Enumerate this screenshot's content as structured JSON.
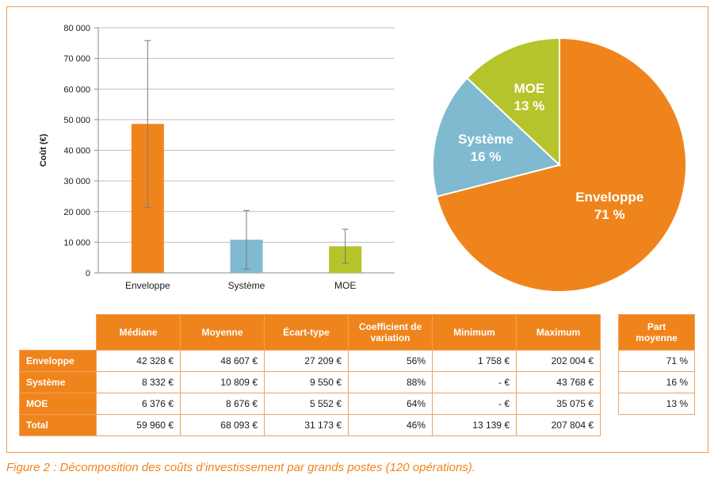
{
  "colors": {
    "orange": "#f0841c",
    "blue": "#7fbad0",
    "green": "#b5c42b",
    "grid": "#bfbfbf",
    "border": "#f29a4a"
  },
  "chart_data": [
    {
      "type": "bar",
      "title": "",
      "xlabel": "",
      "ylabel": "Coût (€)",
      "ylim": [
        0,
        80000
      ],
      "yticks": [
        0,
        10000,
        20000,
        30000,
        40000,
        50000,
        60000,
        70000,
        80000
      ],
      "ytick_labels": [
        "0",
        "10 000",
        "20 000",
        "30 000",
        "40 000",
        "50 000",
        "60 000",
        "70 000",
        "80 000"
      ],
      "categories": [
        "Enveloppe",
        "Système",
        "MOE"
      ],
      "values": [
        48607,
        10809,
        8676
      ],
      "error_low": [
        21400,
        1259,
        3124
      ],
      "error_high": [
        75800,
        20359,
        14228
      ],
      "grid": true
    },
    {
      "type": "pie",
      "labels": [
        "Enveloppe",
        "Système",
        "MOE"
      ],
      "values": [
        71,
        16,
        13
      ],
      "value_labels": [
        "71 %",
        "16 %",
        "13 %"
      ]
    }
  ],
  "table": {
    "columns": [
      "Médiane",
      "Moyenne",
      "Écart-type",
      "Coefficient de variation",
      "Minimum",
      "Maximum"
    ],
    "rows": [
      {
        "label": "Enveloppe",
        "cells": [
          "42 328 €",
          "48 607 €",
          "27 209 €",
          "56%",
          "1 758 €",
          "202 004 €"
        ]
      },
      {
        "label": "Système",
        "cells": [
          "8 332 €",
          "10 809 €",
          "9 550 €",
          "88%",
          "-   €",
          "43 768 €"
        ]
      },
      {
        "label": "MOE",
        "cells": [
          "6 376 €",
          "8 676 €",
          "5 552 €",
          "64%",
          "-   €",
          "35 075 €"
        ]
      },
      {
        "label": "Total",
        "cells": [
          "59 960 €",
          "68 093 €",
          "31 173 €",
          "46%",
          "13 139 €",
          "207 804 €"
        ]
      }
    ]
  },
  "share_table": {
    "header": "Part moyenne",
    "values": [
      "71 %",
      "16 %",
      "13 %"
    ]
  },
  "caption": "Figure 2 : Décomposition des coûts d’investissement par grands postes (120 opérations)."
}
